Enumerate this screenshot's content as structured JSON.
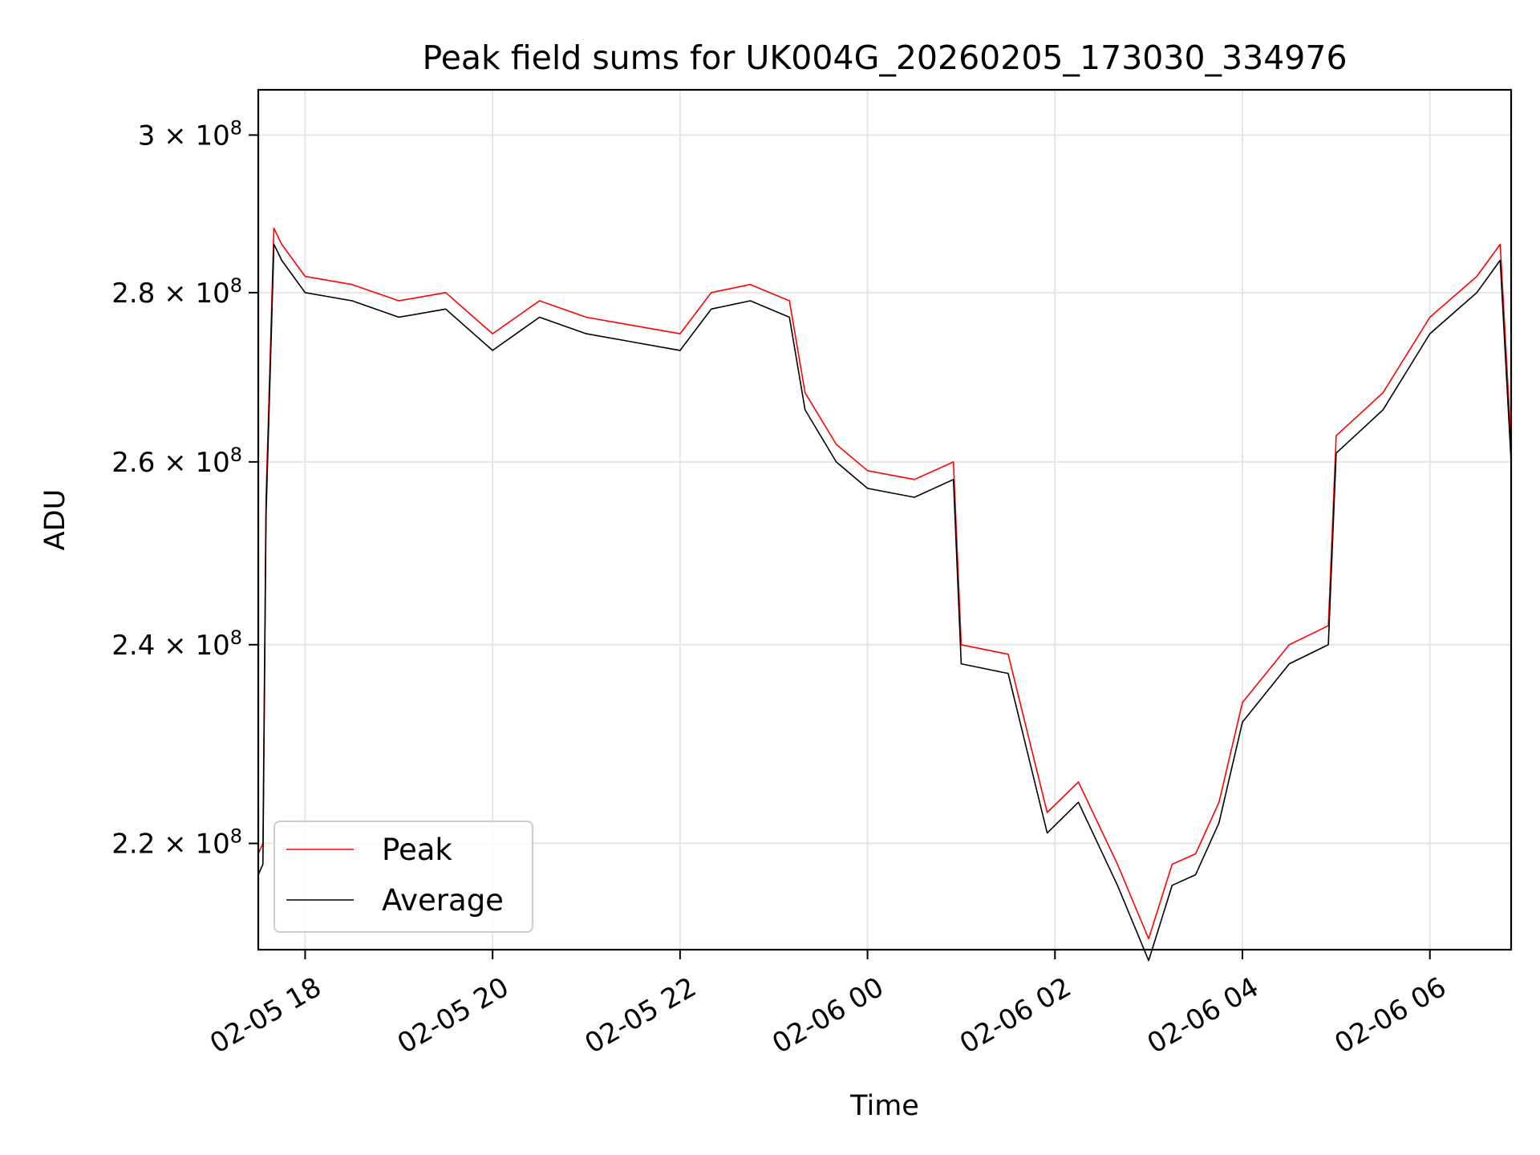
{
  "chart_data": {
    "type": "line",
    "title": "Peak field sums for UK004G_20260205_173030_334976",
    "xlabel": "Time",
    "ylabel": "ADU",
    "y_scale": "log",
    "grid": true,
    "legend_position": "lower-left",
    "xlim": [
      "2026-02-05 17:30",
      "2026-02-06 06:52"
    ],
    "ylim": [
      210000000,
      306000000
    ],
    "x_ticks": [
      "02-05 18",
      "02-05 20",
      "02-05 22",
      "02-06 00",
      "02-06 02",
      "02-06 04",
      "02-06 06"
    ],
    "x_tick_times": [
      "2026-02-05 18:00",
      "2026-02-05 20:00",
      "2026-02-05 22:00",
      "2026-02-06 00:00",
      "2026-02-06 02:00",
      "2026-02-06 04:00",
      "2026-02-06 06:00"
    ],
    "y_ticks": [
      {
        "value": 220000000,
        "mantissa": "2.2",
        "exp": "8"
      },
      {
        "value": 240000000,
        "mantissa": "2.4",
        "exp": "8"
      },
      {
        "value": 260000000,
        "mantissa": "2.6",
        "exp": "8"
      },
      {
        "value": 280000000,
        "mantissa": "2.8",
        "exp": "8"
      },
      {
        "value": 300000000,
        "mantissa": "3",
        "exp": "8"
      }
    ],
    "x": [
      "2026-02-05 17:30",
      "2026-02-05 17:33",
      "2026-02-05 17:35",
      "2026-02-05 17:40",
      "2026-02-05 17:45",
      "2026-02-05 18:00",
      "2026-02-05 18:30",
      "2026-02-05 19:00",
      "2026-02-05 19:30",
      "2026-02-05 20:00",
      "2026-02-05 20:30",
      "2026-02-05 21:00",
      "2026-02-05 21:30",
      "2026-02-05 22:00",
      "2026-02-05 22:20",
      "2026-02-05 22:45",
      "2026-02-05 23:10",
      "2026-02-05 23:20",
      "2026-02-05 23:40",
      "2026-02-06 00:00",
      "2026-02-06 00:30",
      "2026-02-06 00:55",
      "2026-02-06 01:00",
      "2026-02-06 01:30",
      "2026-02-06 01:55",
      "2026-02-06 02:15",
      "2026-02-06 02:40",
      "2026-02-06 03:00",
      "2026-02-06 03:15",
      "2026-02-06 03:30",
      "2026-02-06 03:45",
      "2026-02-06 04:00",
      "2026-02-06 04:30",
      "2026-02-06 04:55",
      "2026-02-06 05:00",
      "2026-02-06 05:30",
      "2026-02-06 06:00",
      "2026-02-06 06:30",
      "2026-02-06 06:45",
      "2026-02-06 06:52"
    ],
    "series": [
      {
        "name": "Peak",
        "color": "#ff0000",
        "values": [
          219000000,
          220000000,
          256000000,
          288000000,
          286000000,
          282000000,
          281000000,
          279000000,
          280000000,
          275000000,
          279000000,
          277000000,
          276000000,
          275000000,
          280000000,
          281000000,
          279000000,
          268000000,
          262000000,
          259000000,
          258000000,
          260000000,
          240000000,
          239000000,
          223000000,
          226000000,
          218000000,
          211000000,
          218000000,
          219000000,
          224000000,
          234000000,
          240000000,
          242000000,
          263000000,
          268000000,
          277000000,
          282000000,
          286000000,
          262000000
        ]
      },
      {
        "name": "Average",
        "color": "#000000",
        "values": [
          217000000,
          218000000,
          254000000,
          286000000,
          284000000,
          280000000,
          279000000,
          277000000,
          278000000,
          273000000,
          277000000,
          275000000,
          274000000,
          273000000,
          278000000,
          279000000,
          277000000,
          266000000,
          260000000,
          257000000,
          256000000,
          258000000,
          238000000,
          237000000,
          221000000,
          224000000,
          216000000,
          209000000,
          216000000,
          217000000,
          222000000,
          232000000,
          238000000,
          240000000,
          261000000,
          266000000,
          275000000,
          280000000,
          284000000,
          260000000
        ]
      }
    ]
  }
}
